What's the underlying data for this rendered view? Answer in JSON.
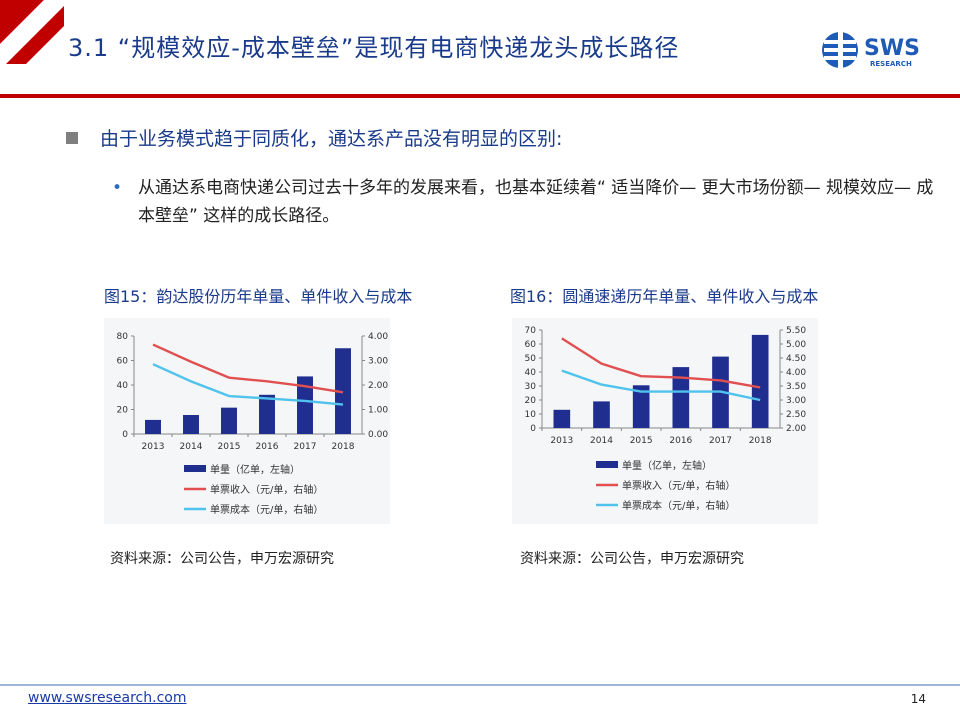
{
  "slide": {
    "title": "3.1 “规模效应-成本壁垒”是现有电商快递龙头成长路径",
    "bullet_main": "由于业务模式趋于同质化，通达系产品没有明显的区别:",
    "bullet_sub": "从通达系电商快递公司过去十多年的发展来看，也基本延续着“ 适当降价— 更大市场份额— 规模效应— 成本壁垒” 这样的成长路径。",
    "logo_text": "SWS",
    "logo_sub": "RESEARCH",
    "footer_link": "www.swsresearch.com",
    "page_number": "14"
  },
  "figures": [
    {
      "title": "图15：韵达股份历年单量、单件收入与成本",
      "source": "资料来源：公司公告，申万宏源研究"
    },
    {
      "title": "图16：圆通速递历年单量、单件收入与成本",
      "source": "资料来源：公司公告，申万宏源研究"
    }
  ],
  "colors": {
    "bar": "#1f2e8f",
    "revenue": "#e05050",
    "cost": "#4fc3ec",
    "title": "#1a3a8a",
    "accent": "#c00000"
  },
  "chart_data": [
    {
      "type": "bar",
      "categories": [
        "2013",
        "2014",
        "2015",
        "2016",
        "2017",
        "2018"
      ],
      "series": [
        {
          "name": "单量（亿单，左轴）",
          "type": "bar",
          "axis": "left",
          "values": [
            11.5,
            15.5,
            21.5,
            32,
            47,
            70
          ]
        },
        {
          "name": "单票收入（元/单，右轴）",
          "type": "line",
          "axis": "right",
          "values": [
            3.65,
            2.95,
            2.3,
            2.15,
            1.95,
            1.7
          ]
        },
        {
          "name": "单票成本（元/单，右轴）",
          "type": "line",
          "axis": "right",
          "values": [
            2.85,
            2.15,
            1.55,
            1.45,
            1.35,
            1.2
          ]
        }
      ],
      "ylim_left": [
        0,
        80
      ],
      "yticks_left": [
        "0",
        "20",
        "40",
        "60",
        "80"
      ],
      "ylim_right": [
        0,
        4
      ],
      "yticks_right": [
        "0.00",
        "1.00",
        "2.00",
        "3.00",
        "4.00"
      ],
      "legend": "bottom"
    },
    {
      "type": "bar",
      "categories": [
        "2013",
        "2014",
        "2015",
        "2016",
        "2017",
        "2018"
      ],
      "series": [
        {
          "name": "单量（亿单，左轴）",
          "type": "bar",
          "axis": "left",
          "values": [
            13,
            19,
            30.5,
            43.5,
            51,
            66.5
          ]
        },
        {
          "name": "单票收入（元/单，右轴）",
          "type": "line",
          "axis": "right",
          "values": [
            5.2,
            4.3,
            3.85,
            3.8,
            3.7,
            3.45
          ]
        },
        {
          "name": "单票成本（元/单，右轴）",
          "type": "line",
          "axis": "right",
          "values": [
            4.05,
            3.55,
            3.3,
            3.3,
            3.3,
            3.0
          ]
        }
      ],
      "ylim_left": [
        0,
        70
      ],
      "yticks_left": [
        "0",
        "10",
        "20",
        "30",
        "40",
        "50",
        "60",
        "70"
      ],
      "ylim_right": [
        2,
        5.5
      ],
      "yticks_right": [
        "2.00",
        "2.50",
        "3.00",
        "3.50",
        "4.00",
        "4.50",
        "5.00",
        "5.50"
      ],
      "legend": "bottom"
    }
  ]
}
